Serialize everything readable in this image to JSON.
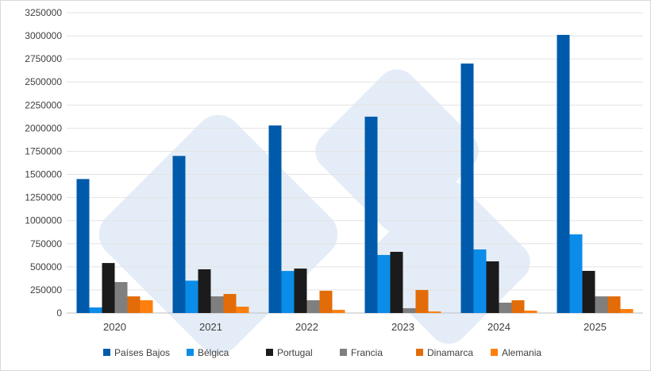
{
  "chart_data": {
    "type": "bar",
    "title": "",
    "xlabel": "",
    "ylabel": "",
    "categories": [
      "2020",
      "2021",
      "2022",
      "2023",
      "2024",
      "2025"
    ],
    "ylim": [
      0,
      3250000
    ],
    "yticks": [
      0,
      250000,
      500000,
      750000,
      1000000,
      1250000,
      1500000,
      1750000,
      2000000,
      2250000,
      2500000,
      2750000,
      3000000,
      3250000
    ],
    "grid": true,
    "legend_position": "bottom",
    "series": [
      {
        "name": "Países Bajos",
        "color": "#005aab",
        "values": [
          1450000,
          1700000,
          2030000,
          2125000,
          2700000,
          3010000
        ]
      },
      {
        "name": "Bélgica",
        "color": "#0b8ce9",
        "values": [
          60000,
          350000,
          455000,
          628000,
          688000,
          851000
        ]
      },
      {
        "name": "Portugal",
        "color": "#1b1b1b",
        "values": [
          541000,
          473000,
          481000,
          662000,
          559000,
          456000
        ]
      },
      {
        "name": "Francia",
        "color": "#7f7f7f",
        "values": [
          335000,
          180000,
          138000,
          52000,
          112000,
          180000
        ]
      },
      {
        "name": "Dinamarca",
        "color": "#e36c09",
        "values": [
          180000,
          206000,
          241000,
          249000,
          138000,
          180000
        ]
      },
      {
        "name": "Alemania",
        "color": "#ff7f0e",
        "values": [
          138000,
          69000,
          34000,
          17000,
          26000,
          43000
        ]
      }
    ]
  }
}
